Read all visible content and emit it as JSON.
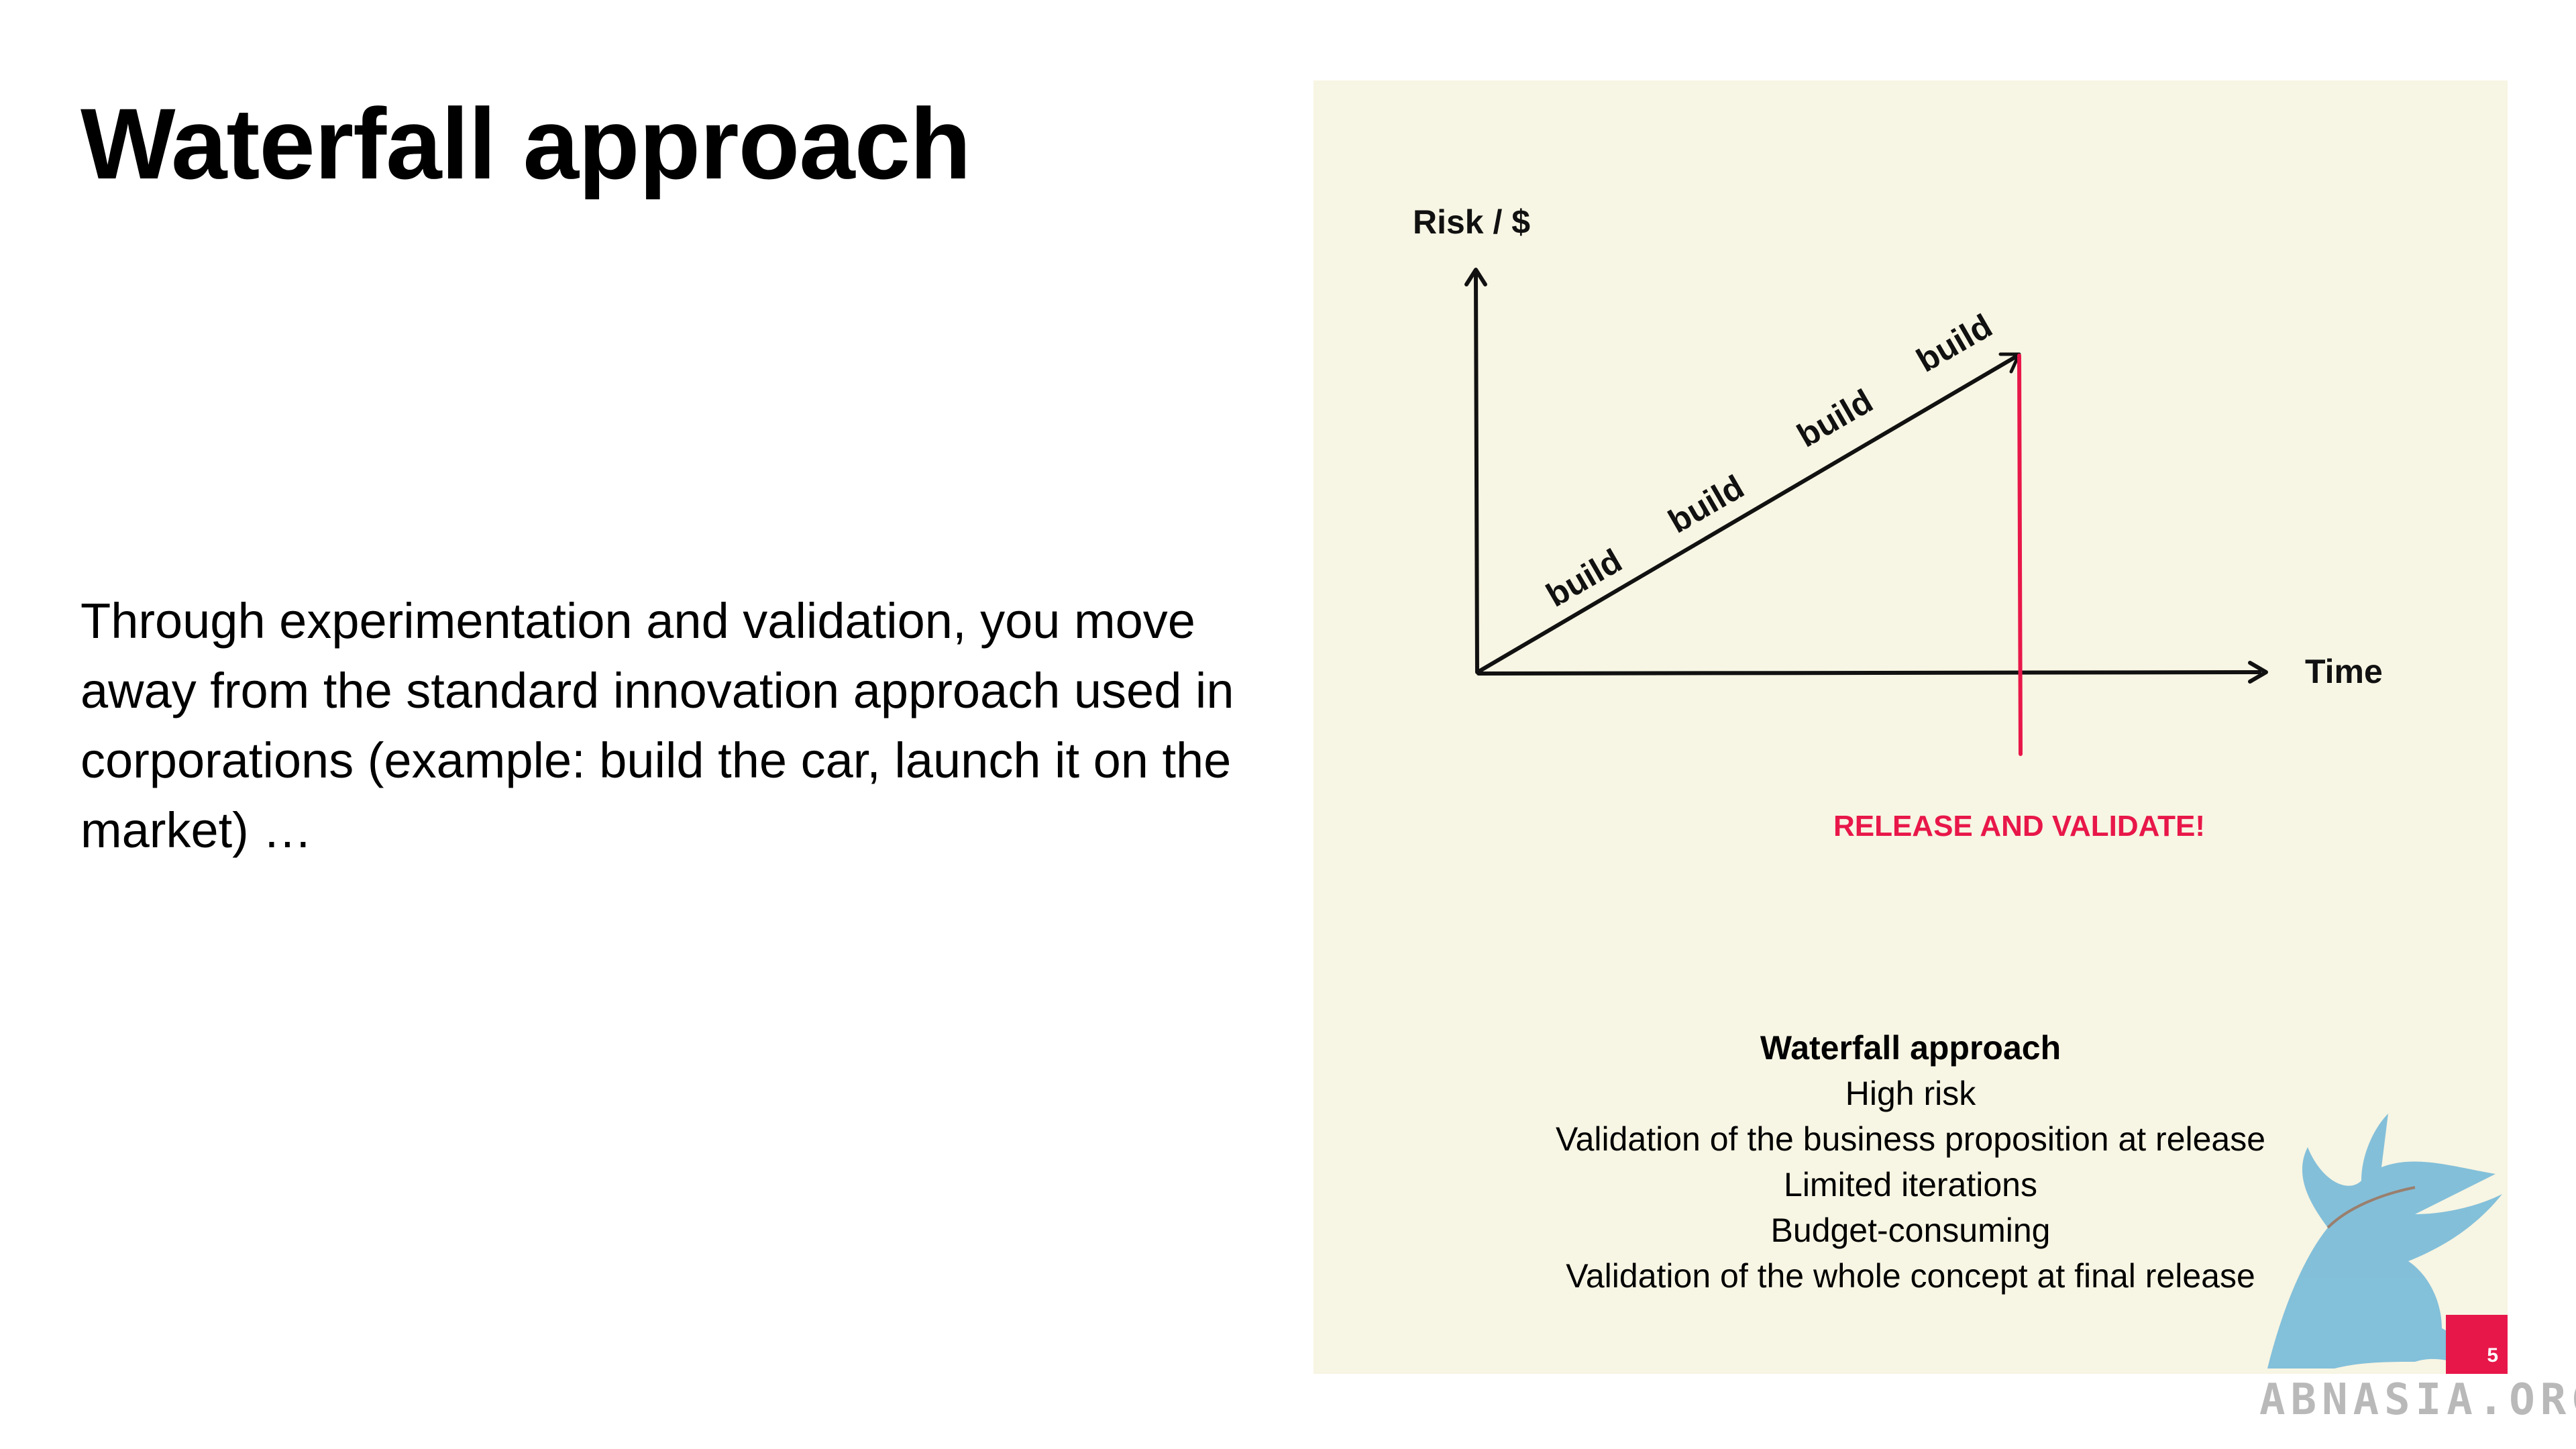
{
  "slide": {
    "title": "Waterfall approach",
    "body": "Through experimentation and validation, you move away from the standard innovation approach used in corporations (example: build the car, launch it on the market) …",
    "page_number": "5"
  },
  "diagram": {
    "y_axis_label": "Risk / $",
    "x_axis_label": "Time",
    "line_labels": [
      "build",
      "build",
      "build",
      "build"
    ],
    "release_label": "RELEASE AND VALIDATE!",
    "colors": {
      "accent": "#e8174a",
      "panel": "#f7f5e3",
      "ink": "#111111"
    }
  },
  "summary": {
    "title": "Waterfall approach",
    "points": [
      "High risk",
      "Validation of the business proposition at release",
      "Limited iterations",
      "Budget-consuming",
      "Validation of the whole concept at final release"
    ]
  },
  "watermark": {
    "text": "ABNASIA.ORG",
    "logo": "griffin-logo"
  }
}
